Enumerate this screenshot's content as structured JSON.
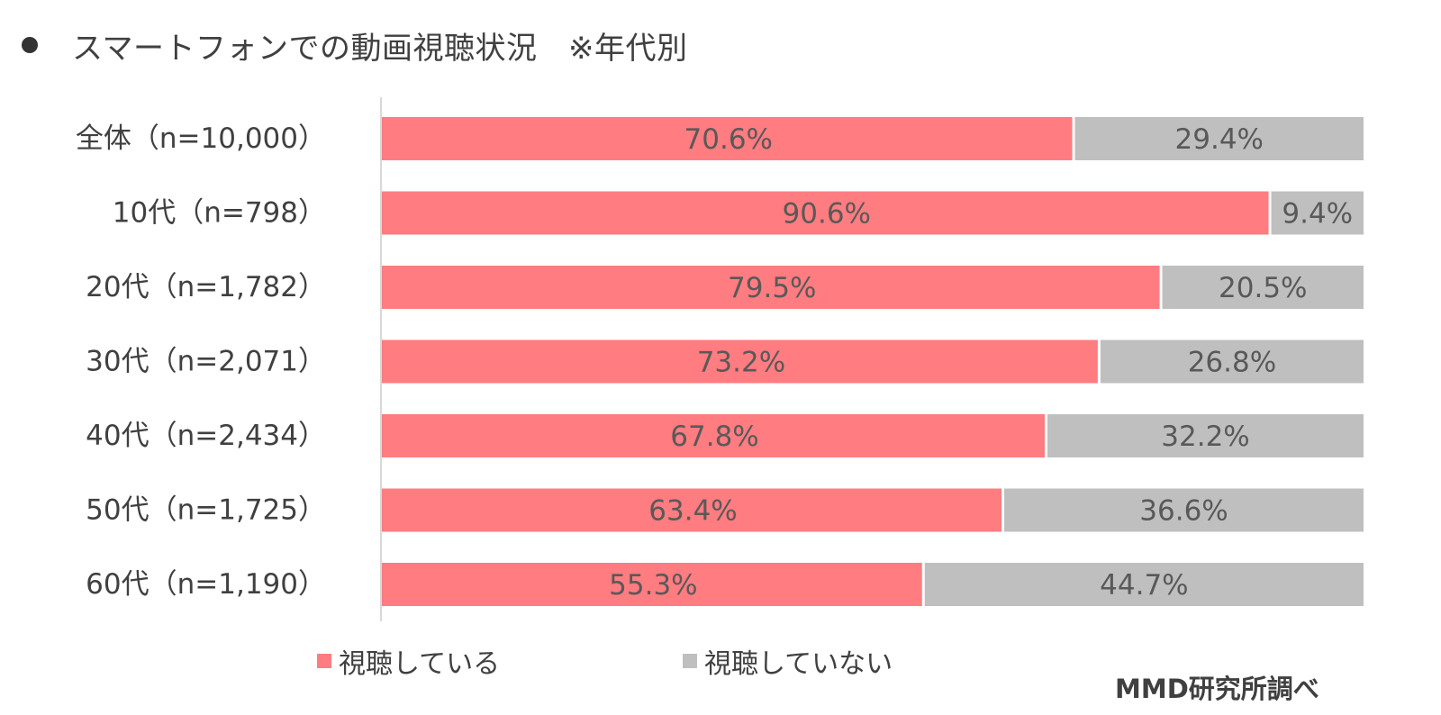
{
  "title": "スマートフォンでの動画視聴状況　※年代別",
  "source": "MMD研究所調べ",
  "colors": {
    "watching": "#ff7c80",
    "not_watching": "#bfbfbf",
    "axis": "#d9d9d9",
    "label_text": "#595959"
  },
  "chart_data": {
    "type": "bar",
    "orientation": "horizontal",
    "stacked": true,
    "unit": "%",
    "xlim": [
      0,
      100
    ],
    "grid": false,
    "legend_position": "bottom",
    "categories": [
      "全体（n=10,000）",
      "10代（n=798）",
      "20代（n=1,782）",
      "30代（n=2,071）",
      "40代（n=2,434）",
      "50代（n=1,725）",
      "60代（n=1,190）"
    ],
    "series": [
      {
        "name": "視聴している",
        "values": [
          70.6,
          90.6,
          79.5,
          73.2,
          67.8,
          63.4,
          55.3
        ],
        "labels": [
          "70.6%",
          "90.6%",
          "79.5%",
          "73.2%",
          "67.8%",
          "63.4%",
          "55.3%"
        ]
      },
      {
        "name": "視聴していない",
        "values": [
          29.4,
          9.4,
          20.5,
          26.8,
          32.2,
          36.6,
          44.7
        ],
        "labels": [
          "29.4%",
          "9.4%",
          "20.5%",
          "26.8%",
          "32.2%",
          "36.6%",
          "44.7%"
        ]
      }
    ]
  }
}
